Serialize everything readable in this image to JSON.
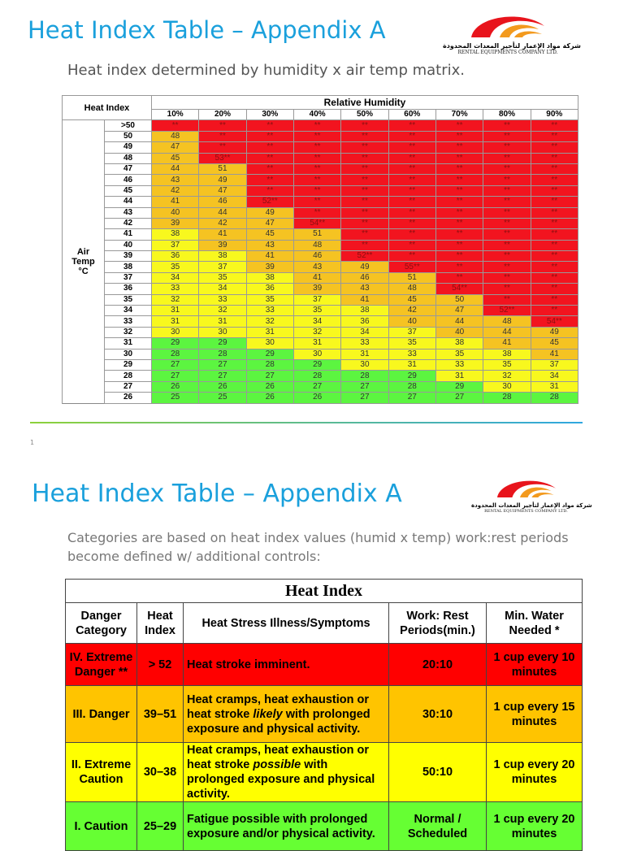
{
  "slide1": {
    "title": "Heat Index Table – Appendix A",
    "subtitle": "Heat index determined by humidity x air temp matrix.",
    "logo": {
      "arabic": "شركة مواد الإعمار لتأجير المعدات المحدودة",
      "english": "RENTAL EQUIPMENTS COMPANY LTD."
    },
    "table": {
      "corner": "Heat Index",
      "group_header": "Relative Humidity",
      "row_group_label": [
        "Air",
        "Temp",
        "°C"
      ],
      "columns": [
        "10%",
        "20%",
        "30%",
        "40%",
        "50%",
        "60%",
        "70%",
        "80%",
        "90%"
      ],
      "rows": [
        {
          "t": ">50",
          "v": [
            "**",
            "**",
            "**",
            "**",
            "**",
            "**",
            "**",
            "**",
            "**"
          ]
        },
        {
          "t": "50",
          "v": [
            "48",
            "**",
            "**",
            "**",
            "**",
            "**",
            "**",
            "**",
            "**"
          ]
        },
        {
          "t": "49",
          "v": [
            "47",
            "**",
            "**",
            "**",
            "**",
            "**",
            "**",
            "**",
            "**"
          ]
        },
        {
          "t": "48",
          "v": [
            "45",
            "53**",
            "**",
            "**",
            "**",
            "**",
            "**",
            "**",
            "**"
          ]
        },
        {
          "t": "47",
          "v": [
            "44",
            "51",
            "**",
            "**",
            "**",
            "**",
            "**",
            "**",
            "**"
          ]
        },
        {
          "t": "46",
          "v": [
            "43",
            "49",
            "**",
            "**",
            "**",
            "**",
            "**",
            "**",
            "**"
          ]
        },
        {
          "t": "45",
          "v": [
            "42",
            "47",
            "**",
            "**",
            "**",
            "**",
            "**",
            "**",
            "**"
          ]
        },
        {
          "t": "44",
          "v": [
            "41",
            "46",
            "52**",
            "**",
            "**",
            "**",
            "**",
            "**",
            "**"
          ]
        },
        {
          "t": "43",
          "v": [
            "40",
            "44",
            "49",
            "**",
            "**",
            "**",
            "**",
            "**",
            "**"
          ]
        },
        {
          "t": "42",
          "v": [
            "39",
            "42",
            "47",
            "54**",
            "**",
            "**",
            "**",
            "**",
            "**"
          ]
        },
        {
          "t": "41",
          "v": [
            "38",
            "41",
            "45",
            "51",
            "**",
            "**",
            "**",
            "**",
            "**"
          ]
        },
        {
          "t": "40",
          "v": [
            "37",
            "39",
            "43",
            "48",
            "**",
            "**",
            "**",
            "**",
            "**"
          ]
        },
        {
          "t": "39",
          "v": [
            "36",
            "38",
            "41",
            "46",
            "52**",
            "**",
            "**",
            "**",
            "**"
          ]
        },
        {
          "t": "38",
          "v": [
            "35",
            "37",
            "39",
            "43",
            "49",
            "55**",
            "**",
            "**",
            "**"
          ]
        },
        {
          "t": "37",
          "v": [
            "34",
            "35",
            "38",
            "41",
            "46",
            "51",
            "**",
            "**",
            "**"
          ]
        },
        {
          "t": "36",
          "v": [
            "33",
            "34",
            "36",
            "39",
            "43",
            "48",
            "54**",
            "**",
            "**"
          ]
        },
        {
          "t": "35",
          "v": [
            "32",
            "33",
            "35",
            "37",
            "41",
            "45",
            "50",
            "**",
            "**"
          ]
        },
        {
          "t": "34",
          "v": [
            "31",
            "32",
            "33",
            "35",
            "38",
            "42",
            "47",
            "52**",
            "**"
          ]
        },
        {
          "t": "33",
          "v": [
            "31",
            "31",
            "32",
            "34",
            "36",
            "40",
            "44",
            "48",
            "54**"
          ]
        },
        {
          "t": "32",
          "v": [
            "30",
            "30",
            "31",
            "32",
            "34",
            "37",
            "40",
            "44",
            "49"
          ]
        },
        {
          "t": "31",
          "v": [
            "29",
            "29",
            "30",
            "31",
            "33",
            "35",
            "38",
            "41",
            "45"
          ]
        },
        {
          "t": "30",
          "v": [
            "28",
            "28",
            "29",
            "30",
            "31",
            "33",
            "35",
            "38",
            "41"
          ]
        },
        {
          "t": "29",
          "v": [
            "27",
            "27",
            "28",
            "29",
            "30",
            "31",
            "33",
            "35",
            "37"
          ]
        },
        {
          "t": "28",
          "v": [
            "27",
            "27",
            "27",
            "28",
            "28",
            "29",
            "31",
            "32",
            "34"
          ]
        },
        {
          "t": "27",
          "v": [
            "26",
            "26",
            "26",
            "27",
            "27",
            "28",
            "29",
            "30",
            "31"
          ]
        },
        {
          "t": "26",
          "v": [
            "25",
            "25",
            "26",
            "26",
            "27",
            "27",
            "27",
            "28",
            "28"
          ]
        }
      ]
    },
    "page_number": "1"
  },
  "slide2": {
    "title": "Heat Index Table – Appendix A",
    "subtitle": "Categories are based on heat index values (humid x temp) work:rest periods become defined w/ additional controls:",
    "logo": {
      "arabic": "شركة مواد الإعمار لتأجير المعدات المحدودة",
      "english": "RENTAL EQUIPMENTS COMPANY LTD."
    },
    "table": {
      "title": "Heat Index",
      "headers": [
        "Danger Category",
        "Heat Index",
        "Heat Stress Illness/Symptoms",
        "Work: Rest Periods(min.)",
        "Min. Water Needed *"
      ],
      "rows": [
        {
          "category": "IV. Extreme Danger **",
          "index": "> 52",
          "sym_pre": "Heat stroke imminent.",
          "sym_em": "",
          "sym_post": "",
          "rest": "20:10",
          "water": "1 cup every 10 minutes"
        },
        {
          "category": "III. Danger",
          "index": "39–51",
          "sym_pre": "Heat cramps, heat exhaustion or heat stroke ",
          "sym_em": "likely",
          "sym_post": " with prolonged exposure and physical activity.",
          "rest": "30:10",
          "water": "1 cup every 15 minutes"
        },
        {
          "category": "II. Extreme Caution",
          "index": "30–38",
          "sym_pre": "Heat cramps, heat exhaustion or heat stroke ",
          "sym_em": "possible",
          "sym_post": " with prolonged exposure and physical activity.",
          "rest": "50:10",
          "water": "1 cup every 20 minutes"
        },
        {
          "category": "I. Caution",
          "index": "25–29",
          "sym_pre": "Fatigue possible with prolonged exposure and/or physical activity.",
          "sym_em": "",
          "sym_post": "",
          "rest": "Normal / Scheduled",
          "water": "1 cup every 20 minutes"
        }
      ]
    }
  },
  "colors": {
    "title": "#1aa0dc",
    "red": "#f2141f",
    "orange": "#f5c322",
    "yellow": "#f8f81e",
    "green": "#5cf540"
  }
}
